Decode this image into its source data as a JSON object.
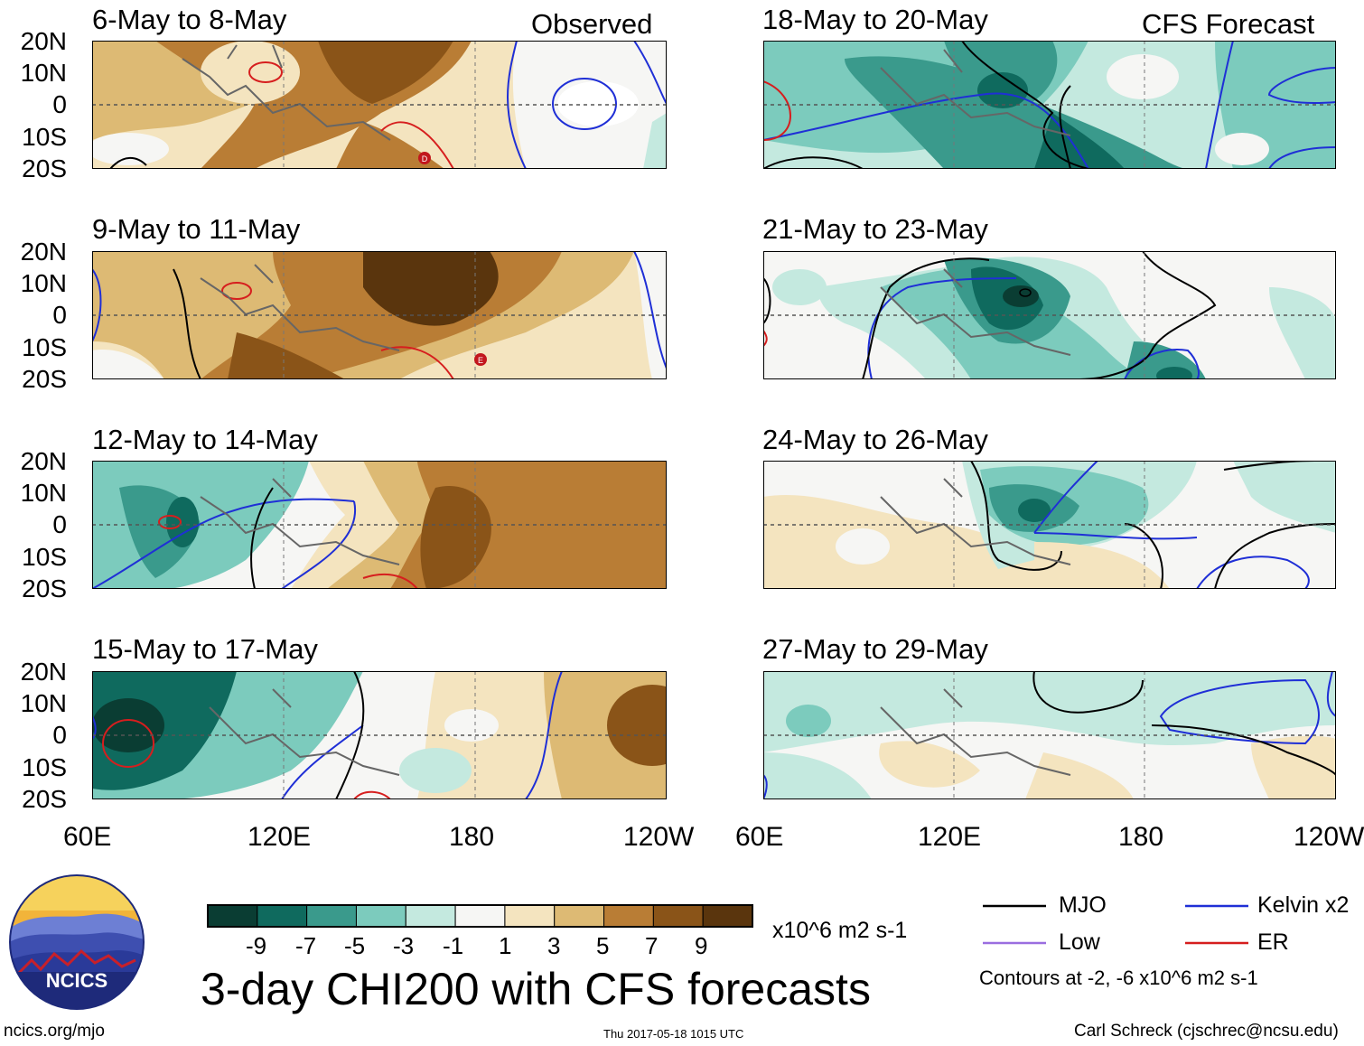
{
  "header": {
    "observed_label": "Observed",
    "forecast_label": "CFS Forecast"
  },
  "observed_panels": [
    {
      "title": "6-May to 8-May"
    },
    {
      "title": "9-May to 11-May"
    },
    {
      "title": "12-May to 14-May"
    },
    {
      "title": "15-May to 17-May"
    }
  ],
  "forecast_panels": [
    {
      "title": "18-May to 20-May"
    },
    {
      "title": "21-May to 23-May"
    },
    {
      "title": "24-May to 26-May"
    },
    {
      "title": "27-May to 29-May"
    }
  ],
  "axes": {
    "lat_labels": [
      "20N",
      "10N",
      "0",
      "10S",
      "20S"
    ],
    "lon_labels": [
      "60E",
      "120E",
      "180",
      "120W"
    ]
  },
  "colorbar": {
    "labels": [
      "-9",
      "-7",
      "-5",
      "-3",
      "-1",
      "1",
      "3",
      "5",
      "7",
      "9"
    ],
    "colors": [
      "#0a3d33",
      "#0f6a5e",
      "#3a9a8c",
      "#7ccbbd",
      "#c4e9df",
      "#f6f6f4",
      "#f4e4bf",
      "#ddba74",
      "#b97d35",
      "#8a5418",
      "#5a350d"
    ],
    "units": "x10^6 m2 s-1"
  },
  "title": "3-day CHI200 with CFS forecasts",
  "legend": {
    "items": [
      {
        "label": "MJO",
        "color": "#000000"
      },
      {
        "label": "Kelvin x2",
        "color": "#1f2fd6"
      },
      {
        "label": "Low",
        "color": "#9a6ee0"
      },
      {
        "label": "ER",
        "color": "#d61e1e"
      }
    ],
    "note": "Contours at -2, -6 x10^6 m2 s-1"
  },
  "logo": {
    "text": "NCICS"
  },
  "footer": {
    "url": "ncics.org/mjo",
    "timestamp": "Thu 2017-05-18 1015 UTC",
    "credit": "Carl Schreck (cjschrec@ncsu.edu)"
  },
  "storm_markers": [
    {
      "letter": "D",
      "panel": "observed-1"
    },
    {
      "letter": "E",
      "panel": "observed-2"
    }
  ]
}
